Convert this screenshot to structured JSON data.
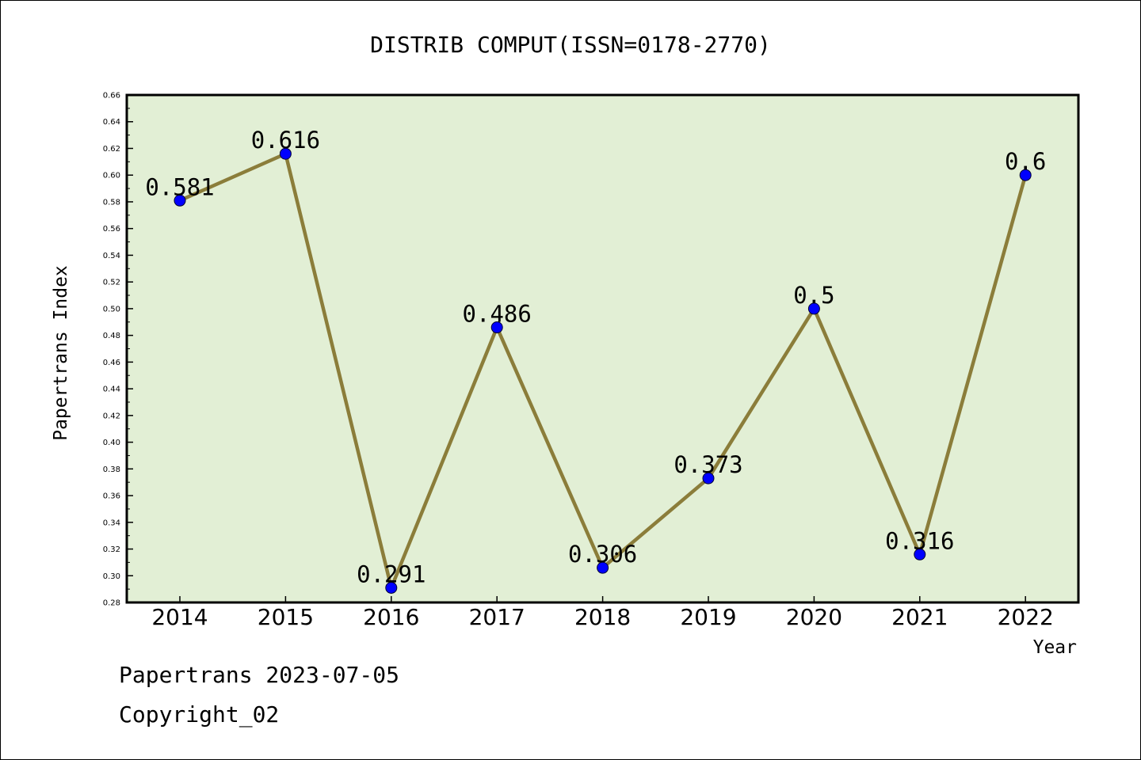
{
  "chart_data": {
    "type": "line",
    "title": "DISTRIB COMPUT(ISSN=0178-2770)",
    "xlabel": "Year",
    "ylabel": "Papertrans Index",
    "categories": [
      "2014",
      "2015",
      "2016",
      "2017",
      "2018",
      "2019",
      "2020",
      "2021",
      "2022"
    ],
    "series": [
      {
        "values": [
          0.581,
          0.616,
          0.291,
          0.486,
          0.306,
          0.373,
          0.5,
          0.316,
          0.6
        ],
        "data_labels": [
          "0.581",
          "0.616",
          "0.291",
          "0.486",
          "0.306",
          "0.373",
          "0.5",
          "0.316",
          "0.6"
        ]
      }
    ],
    "ylim": [
      0.28,
      0.66
    ],
    "yticks": [
      "0.28",
      "0.30",
      "0.32",
      "0.34",
      "0.36",
      "0.38",
      "0.40",
      "0.42",
      "0.44",
      "0.46",
      "0.48",
      "0.50",
      "0.52",
      "0.54",
      "0.56",
      "0.58",
      "0.60",
      "0.62",
      "0.64",
      "0.66"
    ],
    "grid": false,
    "legend": "none",
    "colors": {
      "plot_background": "#e2efd5",
      "line": "#8b7d3a",
      "marker": "#0000ff"
    }
  },
  "footer": {
    "line1": "Papertrans 2023-07-05",
    "line2": "Copyright_02"
  }
}
